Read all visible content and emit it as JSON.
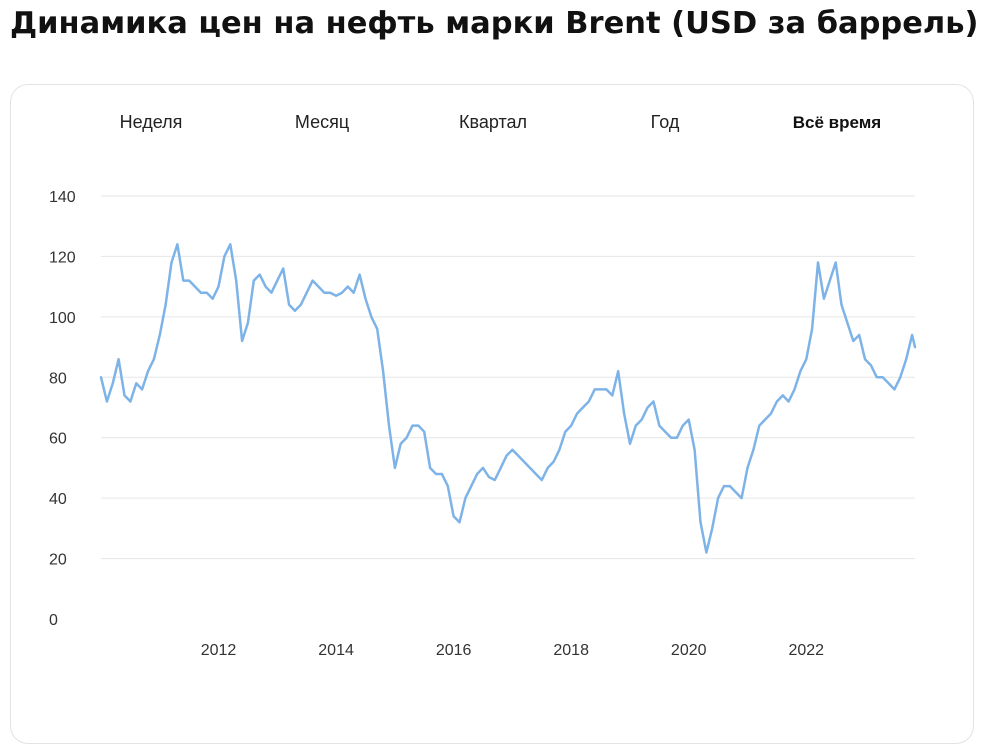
{
  "header": {
    "title": "Динамика цен на нефть марки Brent (USD за баррель)"
  },
  "tabs": [
    {
      "label": "Неделя",
      "active": false
    },
    {
      "label": "Месяц",
      "active": false
    },
    {
      "label": "Квартал",
      "active": false
    },
    {
      "label": "Год",
      "active": false
    },
    {
      "label": "Всё время",
      "active": true
    }
  ],
  "colors": {
    "line": "#7eb3e8",
    "grid": "#e6e6e6"
  },
  "chart_data": {
    "type": "line",
    "title": "Динамика цен на нефть марки Brent (USD за баррель)",
    "xlabel": "",
    "ylabel": "",
    "ylim": [
      0,
      140
    ],
    "xlim": [
      2010.0,
      2023.85
    ],
    "grid": "horizontal",
    "y_ticks": [
      0,
      20,
      40,
      60,
      80,
      100,
      120,
      140
    ],
    "x_ticks": [
      2012,
      2014,
      2016,
      2018,
      2020,
      2022
    ],
    "series": [
      {
        "x": [
          2010.0,
          2010.1,
          2010.2,
          2010.3,
          2010.4,
          2010.5,
          2010.6,
          2010.7,
          2010.8,
          2010.9,
          2011.0,
          2011.1,
          2011.2,
          2011.3,
          2011.4,
          2011.5,
          2011.6,
          2011.7,
          2011.8,
          2011.9,
          2012.0,
          2012.1,
          2012.2,
          2012.3,
          2012.4,
          2012.5,
          2012.6,
          2012.7,
          2012.8,
          2012.9,
          2013.0,
          2013.1,
          2013.2,
          2013.3,
          2013.4,
          2013.5,
          2013.6,
          2013.7,
          2013.8,
          2013.9,
          2014.0,
          2014.1,
          2014.2,
          2014.3,
          2014.4,
          2014.5,
          2014.6,
          2014.7,
          2014.8,
          2014.9,
          2015.0,
          2015.1,
          2015.2,
          2015.3,
          2015.4,
          2015.5,
          2015.6,
          2015.7,
          2015.8,
          2015.9,
          2016.0,
          2016.1,
          2016.2,
          2016.3,
          2016.4,
          2016.5,
          2016.6,
          2016.7,
          2016.8,
          2016.9,
          2017.0,
          2017.1,
          2017.2,
          2017.3,
          2017.4,
          2017.5,
          2017.6,
          2017.7,
          2017.8,
          2017.9,
          2018.0,
          2018.1,
          2018.2,
          2018.3,
          2018.4,
          2018.5,
          2018.6,
          2018.7,
          2018.8,
          2018.9,
          2019.0,
          2019.1,
          2019.2,
          2019.3,
          2019.4,
          2019.5,
          2019.6,
          2019.7,
          2019.8,
          2019.9,
          2020.0,
          2020.1,
          2020.2,
          2020.3,
          2020.4,
          2020.5,
          2020.6,
          2020.7,
          2020.8,
          2020.9,
          2021.0,
          2021.1,
          2021.2,
          2021.3,
          2021.4,
          2021.5,
          2021.6,
          2021.7,
          2021.8,
          2021.9,
          2022.0,
          2022.1,
          2022.2,
          2022.3,
          2022.4,
          2022.5,
          2022.6,
          2022.7,
          2022.8,
          2022.9,
          2023.0,
          2023.1,
          2023.2,
          2023.3,
          2023.4,
          2023.5,
          2023.6,
          2023.7,
          2023.8,
          2023.85
        ],
        "values": [
          80,
          72,
          78,
          86,
          74,
          72,
          78,
          76,
          82,
          86,
          94,
          104,
          118,
          124,
          112,
          112,
          110,
          108,
          108,
          106,
          110,
          120,
          124,
          112,
          92,
          98,
          112,
          114,
          110,
          108,
          112,
          116,
          104,
          102,
          104,
          108,
          112,
          110,
          108,
          108,
          107,
          108,
          110,
          108,
          114,
          106,
          100,
          96,
          82,
          64,
          50,
          58,
          60,
          64,
          64,
          62,
          50,
          48,
          48,
          44,
          34,
          32,
          40,
          44,
          48,
          50,
          47,
          46,
          50,
          54,
          56,
          54,
          52,
          50,
          48,
          46,
          50,
          52,
          56,
          62,
          64,
          68,
          70,
          72,
          76,
          76,
          76,
          74,
          82,
          68,
          58,
          64,
          66,
          70,
          72,
          64,
          62,
          60,
          60,
          64,
          66,
          56,
          32,
          22,
          30,
          40,
          44,
          44,
          42,
          40,
          50,
          56,
          64,
          66,
          68,
          72,
          74,
          72,
          76,
          82,
          86,
          96,
          118,
          106,
          112,
          118,
          104,
          98,
          92,
          94,
          86,
          84,
          80,
          80,
          78,
          76,
          80,
          86,
          94,
          90
        ]
      }
    ]
  }
}
